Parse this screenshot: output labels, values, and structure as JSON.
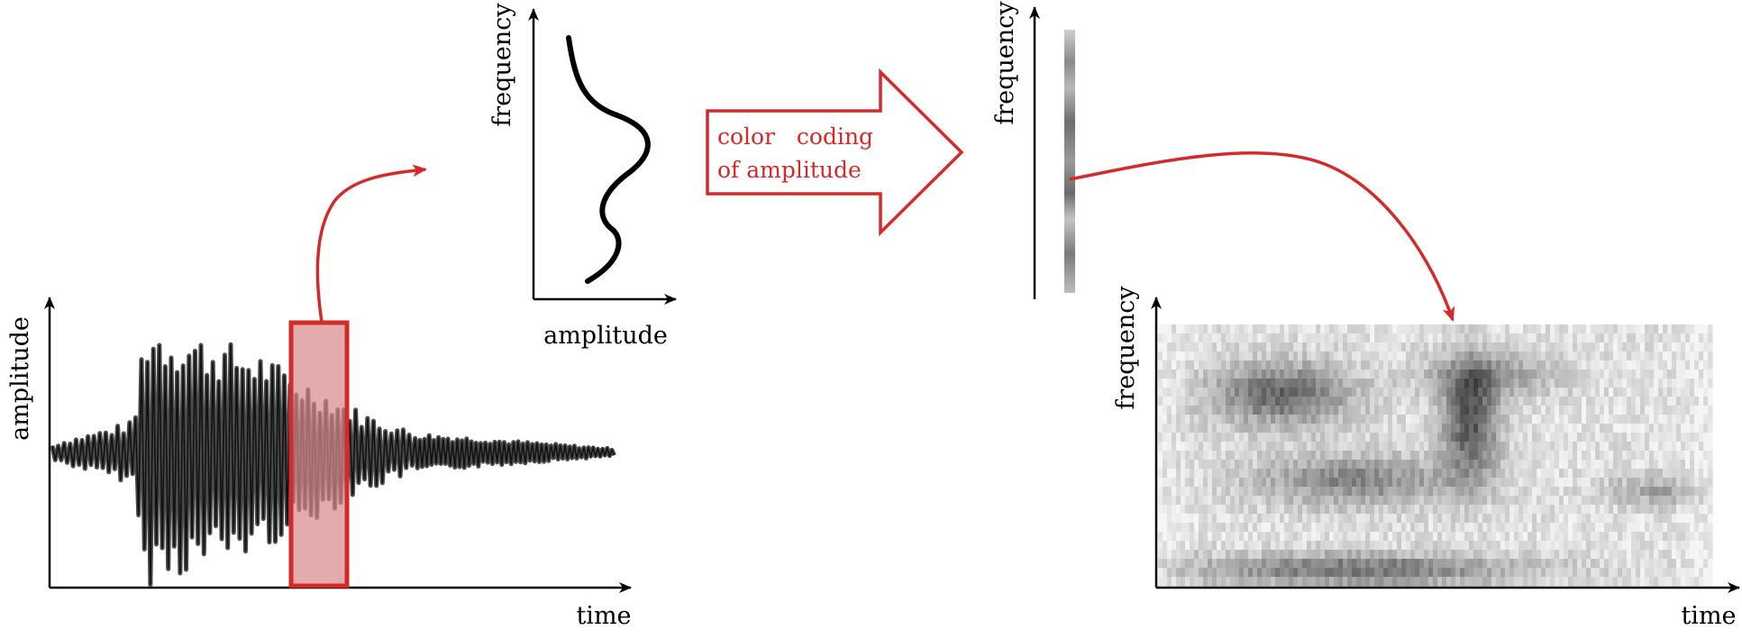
{
  "waveform_panel": {
    "y_axis_label": "amplitude",
    "x_axis_label": "time"
  },
  "spectrum_panel": {
    "y_axis_label": "frequency",
    "x_axis_label": "amplitude"
  },
  "color_coding_arrow": {
    "line1": "color   coding",
    "line2": "of amplitude"
  },
  "coded_column": {
    "y_axis_label": "frequency"
  },
  "spectrogram_panel": {
    "y_axis_label": "frequency",
    "x_axis_label": "time"
  },
  "colors": {
    "accent": "#d42a2a",
    "window_fill": "#d98a8e",
    "ink": "#000000"
  }
}
